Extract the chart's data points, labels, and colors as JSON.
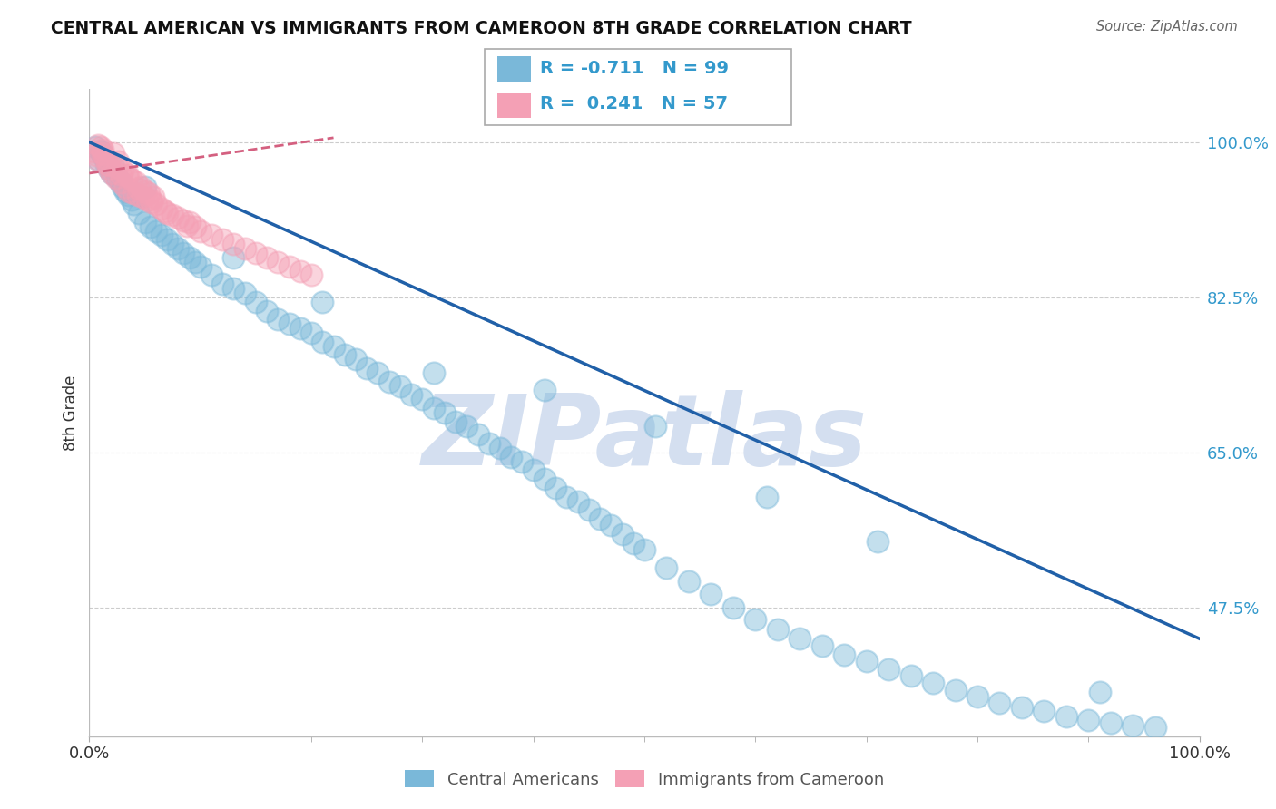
{
  "title": "CENTRAL AMERICAN VS IMMIGRANTS FROM CAMEROON 8TH GRADE CORRELATION CHART",
  "source": "Source: ZipAtlas.com",
  "ylabel": "8th Grade",
  "xlim": [
    0.0,
    1.0
  ],
  "ylim": [
    0.33,
    1.06
  ],
  "yticks": [
    0.475,
    0.65,
    0.825,
    1.0
  ],
  "ytick_labels": [
    "47.5%",
    "65.0%",
    "82.5%",
    "100.0%"
  ],
  "xticks": [
    0.0,
    1.0
  ],
  "xtick_labels": [
    "0.0%",
    "100.0%"
  ],
  "blue_R": -0.711,
  "blue_N": 99,
  "pink_R": 0.241,
  "pink_N": 57,
  "blue_color": "#7ab8d9",
  "pink_color": "#f4a0b5",
  "blue_line_color": "#2060a8",
  "pink_line_color": "#d46080",
  "watermark": "ZIPatlas",
  "watermark_color": "#d4dff0",
  "legend_label_blue": "Central Americans",
  "legend_label_pink": "Immigrants from Cameroon",
  "blue_scatter_x": [
    0.005,
    0.008,
    0.01,
    0.012,
    0.015,
    0.018,
    0.02,
    0.022,
    0.025,
    0.028,
    0.03,
    0.032,
    0.035,
    0.038,
    0.04,
    0.045,
    0.05,
    0.055,
    0.06,
    0.065,
    0.07,
    0.075,
    0.08,
    0.085,
    0.09,
    0.095,
    0.1,
    0.11,
    0.12,
    0.13,
    0.14,
    0.15,
    0.16,
    0.17,
    0.18,
    0.19,
    0.2,
    0.21,
    0.22,
    0.23,
    0.24,
    0.25,
    0.26,
    0.27,
    0.28,
    0.29,
    0.3,
    0.31,
    0.32,
    0.33,
    0.34,
    0.35,
    0.36,
    0.37,
    0.38,
    0.39,
    0.4,
    0.41,
    0.42,
    0.43,
    0.44,
    0.45,
    0.46,
    0.47,
    0.48,
    0.49,
    0.5,
    0.52,
    0.54,
    0.56,
    0.58,
    0.6,
    0.62,
    0.64,
    0.66,
    0.68,
    0.7,
    0.72,
    0.74,
    0.76,
    0.78,
    0.8,
    0.82,
    0.84,
    0.86,
    0.88,
    0.9,
    0.92,
    0.94,
    0.96,
    0.05,
    0.13,
    0.21,
    0.31,
    0.41,
    0.51,
    0.61,
    0.71,
    0.91
  ],
  "blue_scatter_y": [
    0.995,
    0.98,
    0.99,
    0.985,
    0.975,
    0.97,
    0.965,
    0.972,
    0.96,
    0.955,
    0.95,
    0.945,
    0.94,
    0.935,
    0.93,
    0.92,
    0.91,
    0.905,
    0.9,
    0.895,
    0.89,
    0.885,
    0.88,
    0.875,
    0.87,
    0.865,
    0.86,
    0.85,
    0.84,
    0.835,
    0.83,
    0.82,
    0.81,
    0.8,
    0.795,
    0.79,
    0.785,
    0.775,
    0.77,
    0.76,
    0.755,
    0.745,
    0.74,
    0.73,
    0.725,
    0.715,
    0.71,
    0.7,
    0.695,
    0.685,
    0.68,
    0.67,
    0.66,
    0.655,
    0.645,
    0.64,
    0.63,
    0.62,
    0.61,
    0.6,
    0.595,
    0.585,
    0.575,
    0.568,
    0.558,
    0.548,
    0.54,
    0.52,
    0.505,
    0.49,
    0.475,
    0.462,
    0.45,
    0.44,
    0.432,
    0.422,
    0.415,
    0.405,
    0.398,
    0.39,
    0.382,
    0.375,
    0.368,
    0.362,
    0.358,
    0.352,
    0.348,
    0.345,
    0.342,
    0.34,
    0.95,
    0.87,
    0.82,
    0.74,
    0.72,
    0.68,
    0.6,
    0.55,
    0.38
  ],
  "pink_scatter_x": [
    0.004,
    0.006,
    0.008,
    0.01,
    0.012,
    0.014,
    0.016,
    0.018,
    0.02,
    0.022,
    0.024,
    0.026,
    0.028,
    0.03,
    0.032,
    0.034,
    0.036,
    0.038,
    0.04,
    0.042,
    0.044,
    0.046,
    0.048,
    0.05,
    0.052,
    0.054,
    0.056,
    0.058,
    0.06,
    0.065,
    0.07,
    0.075,
    0.08,
    0.085,
    0.09,
    0.095,
    0.1,
    0.11,
    0.12,
    0.13,
    0.14,
    0.15,
    0.16,
    0.17,
    0.18,
    0.19,
    0.2,
    0.025,
    0.035,
    0.055,
    0.012,
    0.018,
    0.028,
    0.008,
    0.045,
    0.068,
    0.088
  ],
  "pink_scatter_y": [
    0.99,
    0.985,
    0.98,
    0.995,
    0.988,
    0.982,
    0.975,
    0.97,
    0.965,
    0.988,
    0.96,
    0.978,
    0.955,
    0.968,
    0.95,
    0.962,
    0.945,
    0.958,
    0.942,
    0.955,
    0.94,
    0.95,
    0.938,
    0.945,
    0.935,
    0.942,
    0.932,
    0.938,
    0.93,
    0.925,
    0.92,
    0.918,
    0.915,
    0.912,
    0.91,
    0.905,
    0.9,
    0.895,
    0.89,
    0.885,
    0.88,
    0.875,
    0.87,
    0.865,
    0.86,
    0.855,
    0.85,
    0.972,
    0.963,
    0.935,
    0.992,
    0.974,
    0.964,
    0.997,
    0.948,
    0.922,
    0.906
  ],
  "blue_line_x": [
    0.0,
    1.0
  ],
  "blue_line_y": [
    1.0,
    0.44
  ],
  "pink_line_x": [
    0.0,
    0.22
  ],
  "pink_line_y": [
    0.965,
    1.005
  ]
}
